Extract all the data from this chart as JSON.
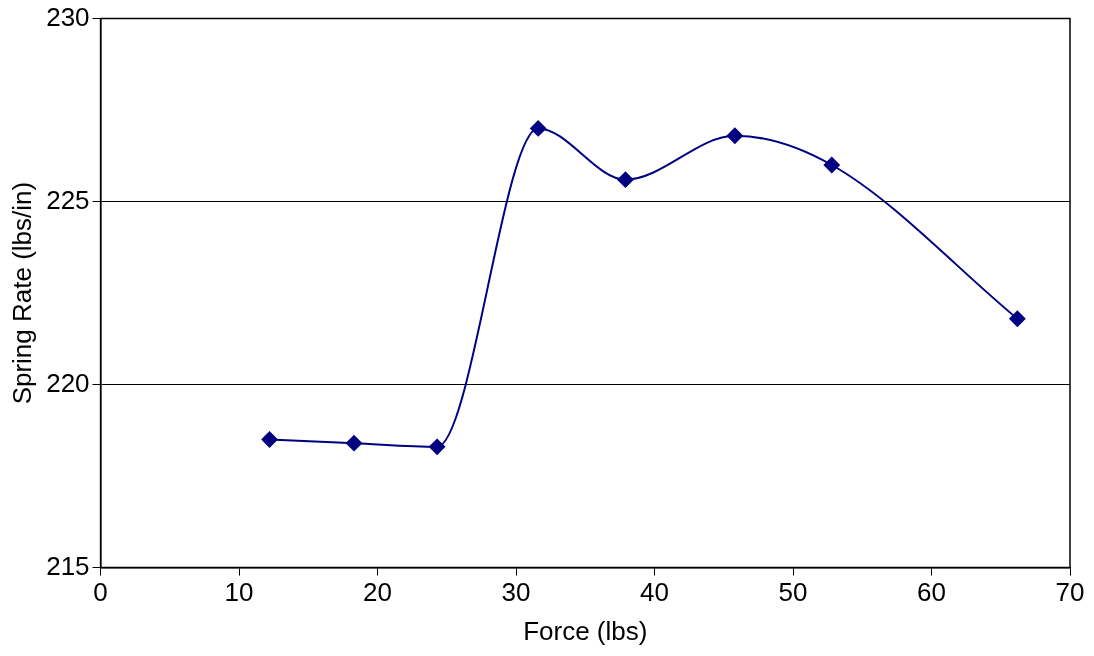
{
  "chart_data": {
    "type": "line",
    "xlabel": "Force (lbs)",
    "ylabel": "Spring Rate (lbs/in)",
    "x": [
      12.2,
      18.3,
      24.3,
      31.6,
      37.9,
      45.8,
      52.8,
      66.2
    ],
    "series": [
      {
        "color": "#000080",
        "values": [
          218.5,
          218.4,
          218.3,
          227.0,
          225.6,
          226.8,
          226.0,
          221.8
        ]
      }
    ],
    "xlim": [
      0,
      70
    ],
    "xticks": [
      0,
      10,
      20,
      30,
      40,
      50,
      60,
      70
    ],
    "ylim": [
      215,
      230
    ],
    "yticks": [
      215,
      220,
      225,
      230
    ],
    "grid": "y",
    "legend": false,
    "marker": "diamond",
    "line_style": "solid"
  }
}
